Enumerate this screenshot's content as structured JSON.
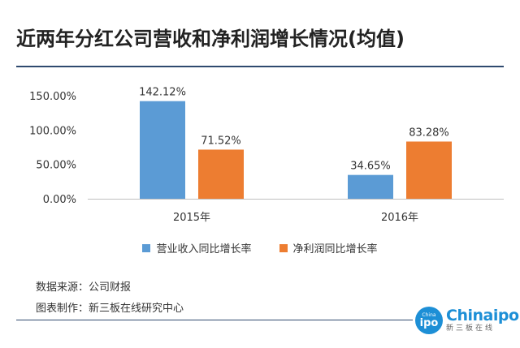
{
  "title": "近两年分红公司营收和净利润增长情况(均值)",
  "chart_data": {
    "type": "bar",
    "categories": [
      "2015年",
      "2016年"
    ],
    "series": [
      {
        "name": "营业收入同比增长率",
        "values": [
          142.12,
          34.65
        ],
        "labels": [
          "142.12%",
          "34.65%"
        ],
        "color": "#5b9bd5"
      },
      {
        "name": "净利润同比增长率",
        "values": [
          71.52,
          83.28
        ],
        "labels": [
          "71.52%",
          "83.28%"
        ],
        "color": "#ed7d31"
      }
    ],
    "yticks": [
      "150.00%",
      "100.00%",
      "50.00%",
      "0.00%"
    ],
    "ylim": [
      0,
      150
    ],
    "grid": false,
    "legend_position": "bottom"
  },
  "footer": {
    "source": "数据来源：公司财报",
    "credit": "图表制作：新三板在线研究中心"
  },
  "logo": {
    "small_text": "China",
    "circle_text": "ipo",
    "main_text": "Chinaipo",
    "sub_text": "新三板在线"
  }
}
